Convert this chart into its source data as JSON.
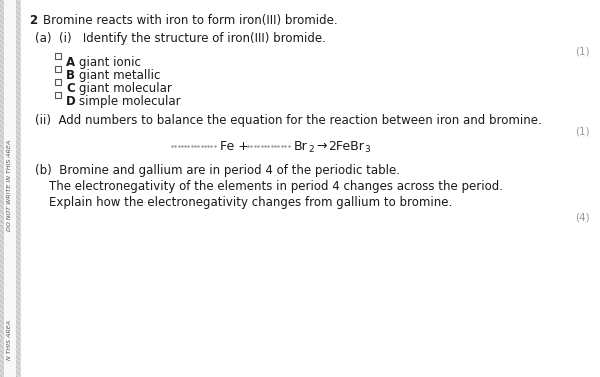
{
  "bg_color": "#ffffff",
  "question_number": "2",
  "main_text": "Bromine reacts with iron to form iron(III) bromide.",
  "part_a_i_label": "(a)  (i)   Identify the structure of iron(III) bromide.",
  "mark_1": "(1)",
  "options": [
    {
      "letter": "A",
      "text": "giant ionic"
    },
    {
      "letter": "B",
      "text": "giant metallic"
    },
    {
      "letter": "C",
      "text": "giant molecular"
    },
    {
      "letter": "D",
      "text": "simple molecular"
    }
  ],
  "part_a_ii_label": "(ii)  Add numbers to balance the equation for the reaction between iron and bromine.",
  "mark_2": "(1)",
  "equation_arrow": "→",
  "part_b_label": "(b)  Bromine and gallium are in period 4 of the periodic table.",
  "part_b_line2": "The electronegativity of the elements in period 4 changes across the period.",
  "part_b_line3": "Explain how the electronegativity changes from gallium to bromine.",
  "mark_4": "(4)",
  "sidebar_top_text": "DO NOT WRITE IN THIS AREA",
  "sidebar_bottom_text": "N THIS AREA",
  "font_size_main": 8.5,
  "font_size_small": 7.5,
  "font_size_eq": 9.0,
  "text_color": "#1a1a1a",
  "gray_color": "#999999",
  "sidebar_bg": "#d8d8d8",
  "sidebar_line_color": "#b0b0b0",
  "checkbox_color": "#555555"
}
